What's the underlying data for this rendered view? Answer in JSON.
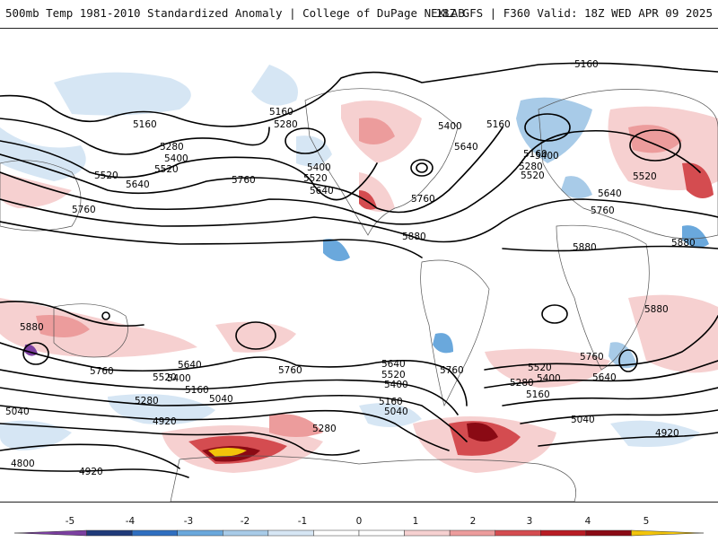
{
  "header": {
    "title_left": "500mb Temp 1981-2010 Standardized Anomaly | College of DuPage NEXLAB",
    "title_right": "18Z GFS | F360 Valid: 18Z WED APR 09 2025"
  },
  "contour_labels": [
    {
      "text": "5160"
    },
    {
      "text": "5160"
    },
    {
      "text": "5280"
    },
    {
      "text": "5160"
    },
    {
      "text": "5280"
    },
    {
      "text": "5400"
    },
    {
      "text": "5520"
    },
    {
      "text": "5520"
    },
    {
      "text": "5640"
    },
    {
      "text": "5760"
    },
    {
      "text": "5400"
    },
    {
      "text": "5520"
    },
    {
      "text": "5640"
    },
    {
      "text": "5400"
    },
    {
      "text": "5640"
    },
    {
      "text": "5760"
    },
    {
      "text": "5160"
    },
    {
      "text": "5160"
    },
    {
      "text": "5280"
    },
    {
      "text": "5400"
    },
    {
      "text": "5520"
    },
    {
      "text": "5520"
    },
    {
      "text": "5640"
    },
    {
      "text": "5760"
    },
    {
      "text": "5760"
    },
    {
      "text": "5880"
    },
    {
      "text": "5880"
    },
    {
      "text": "5880"
    },
    {
      "text": "5880"
    },
    {
      "text": "5880"
    },
    {
      "text": "5760"
    },
    {
      "text": "5640"
    },
    {
      "text": "5520"
    },
    {
      "text": "5400"
    },
    {
      "text": "5160"
    },
    {
      "text": "5040"
    },
    {
      "text": "5280"
    },
    {
      "text": "5040"
    },
    {
      "text": "4920"
    },
    {
      "text": "4800"
    },
    {
      "text": "4920"
    },
    {
      "text": "5760"
    },
    {
      "text": "5640"
    },
    {
      "text": "5520"
    },
    {
      "text": "5400"
    },
    {
      "text": "5160"
    },
    {
      "text": "5040"
    },
    {
      "text": "5280"
    },
    {
      "text": "5760"
    },
    {
      "text": "5520"
    },
    {
      "text": "5400"
    },
    {
      "text": "5280"
    },
    {
      "text": "5160"
    },
    {
      "text": "5760"
    },
    {
      "text": "5640"
    },
    {
      "text": "5040"
    },
    {
      "text": "4920"
    }
  ],
  "legend": {
    "ticks": [
      "-5",
      "-4",
      "-3",
      "-2",
      "-1",
      "0",
      "1",
      "2",
      "3",
      "4",
      "5"
    ],
    "colors": [
      "#7b3fa0",
      "#1f3a7a",
      "#2f6fc0",
      "#6aa8dc",
      "#a8cbe8",
      "#d6e6f4",
      "#ffffff",
      "#ffffff",
      "#f6d0d0",
      "#ec9c9c",
      "#d44c50",
      "#b81c24",
      "#8a0a14",
      "#f2c40a"
    ]
  }
}
